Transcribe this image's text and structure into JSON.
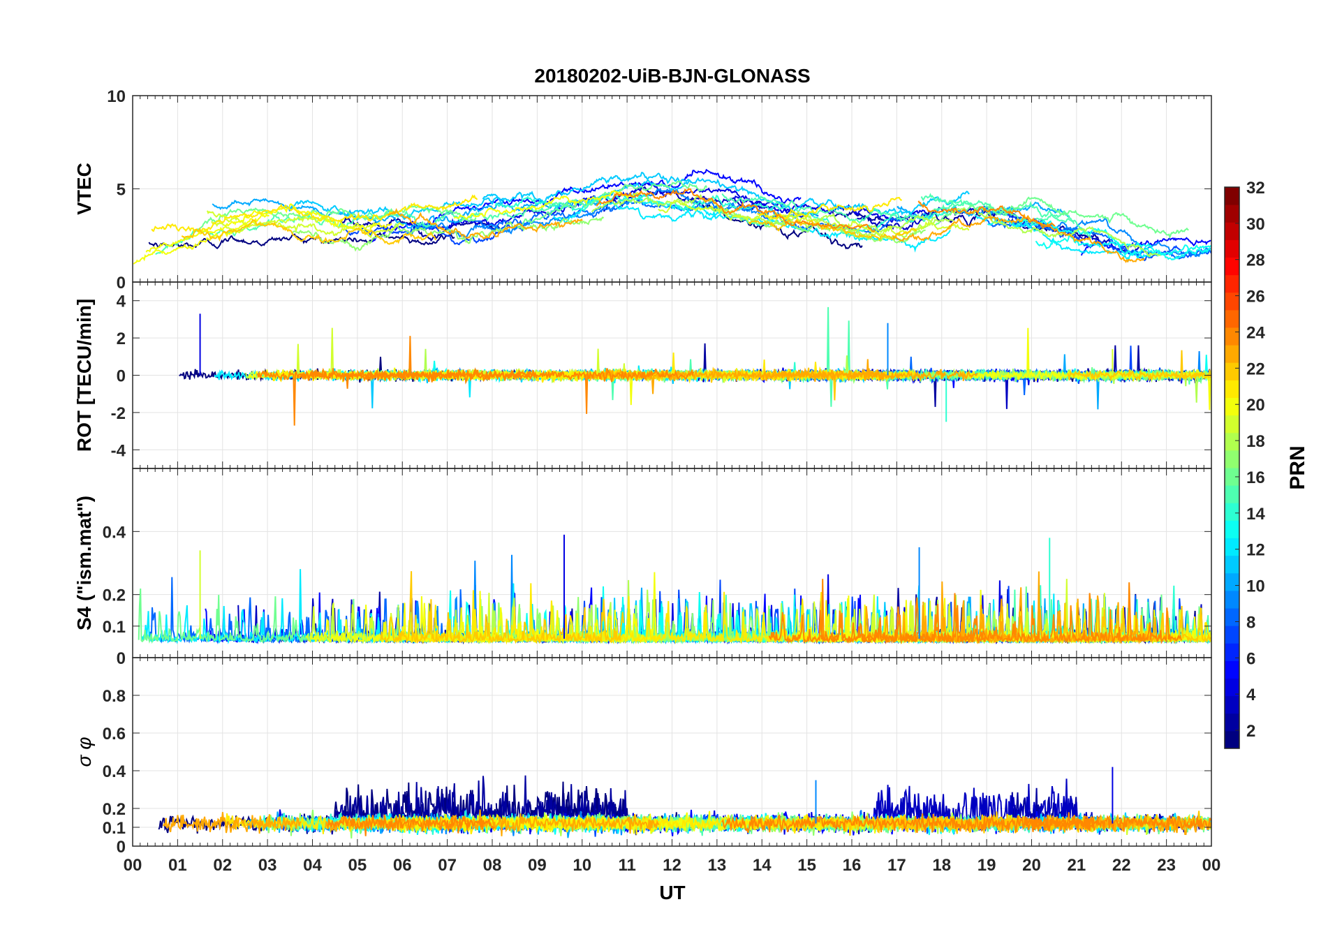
{
  "title": "20180202-UiB-BJN-GLONASS",
  "xlabel": "UT",
  "x_ticks": [
    "00",
    "01",
    "02",
    "03",
    "04",
    "05",
    "06",
    "07",
    "08",
    "09",
    "10",
    "11",
    "12",
    "13",
    "14",
    "15",
    "16",
    "17",
    "18",
    "19",
    "20",
    "21",
    "22",
    "23",
    "00"
  ],
  "colorbar": {
    "label": "PRN",
    "range": [
      1,
      32
    ],
    "tick_labels": [
      "2",
      "4",
      "6",
      "8",
      "10",
      "12",
      "14",
      "16",
      "18",
      "20",
      "22",
      "24",
      "26",
      "28",
      "30",
      "32"
    ],
    "colormap": "jet",
    "colors": [
      "#00008f",
      "#0000ff",
      "#0080ff",
      "#00ffff",
      "#80ff80",
      "#ffff00",
      "#ff8000",
      "#ff0000",
      "#800000"
    ]
  },
  "chart_data": [
    {
      "type": "line",
      "panel": "VTEC",
      "ylabel": "VTEC",
      "ylim": [
        0,
        10
      ],
      "y_tick_labels": [
        "0",
        "5",
        "10"
      ],
      "series_prn": [
        1,
        2,
        3,
        4,
        5,
        7,
        8,
        9,
        10,
        11,
        12,
        13,
        14,
        15,
        16,
        17,
        18,
        19,
        20,
        21,
        22,
        23,
        24
      ],
      "approx_level_by_hour": {
        "x": [
          0,
          2,
          4,
          6,
          8,
          10,
          11,
          12,
          14,
          16,
          17,
          18,
          20,
          22,
          24
        ],
        "y": [
          1.5,
          3.5,
          3.0,
          3.0,
          3.5,
          4.5,
          5.0,
          4.5,
          3.5,
          3.0,
          3.5,
          4.0,
          3.0,
          1.5,
          2.5
        ]
      }
    },
    {
      "type": "line",
      "panel": "ROT",
      "ylabel": "ROT [TECU/min]",
      "ylim": [
        -5,
        5
      ],
      "y_tick_labels": [
        "-4",
        "-2",
        "0",
        "2",
        "4"
      ],
      "notable_spikes": {
        "x": [
          1.5,
          16.8,
          18.1,
          21.8
        ],
        "y": [
          3.3,
          2.8,
          -2.5,
          1.4
        ]
      }
    },
    {
      "type": "line",
      "panel": "S4",
      "ylabel": "S4 (\"ism.mat\")",
      "ylim": [
        0,
        0.6
      ],
      "y_tick_labels": [
        "0",
        "0.1",
        "0.2",
        "0.4"
      ],
      "notable_peaks": {
        "x": [
          9.6,
          17.5,
          20.4,
          1.5
        ],
        "y": [
          0.39,
          0.35,
          0.38,
          0.34
        ]
      }
    },
    {
      "type": "line",
      "panel": "sigma_phi",
      "ylabel": "σ φ",
      "ylim": [
        0,
        1
      ],
      "y_tick_labels": [
        "0",
        "0.1",
        "0.2",
        "0.4",
        "0.6",
        "0.8"
      ],
      "notable_peaks": {
        "x": [
          21.8,
          15.2
        ],
        "y": [
          0.42,
          0.35
        ]
      }
    }
  ]
}
